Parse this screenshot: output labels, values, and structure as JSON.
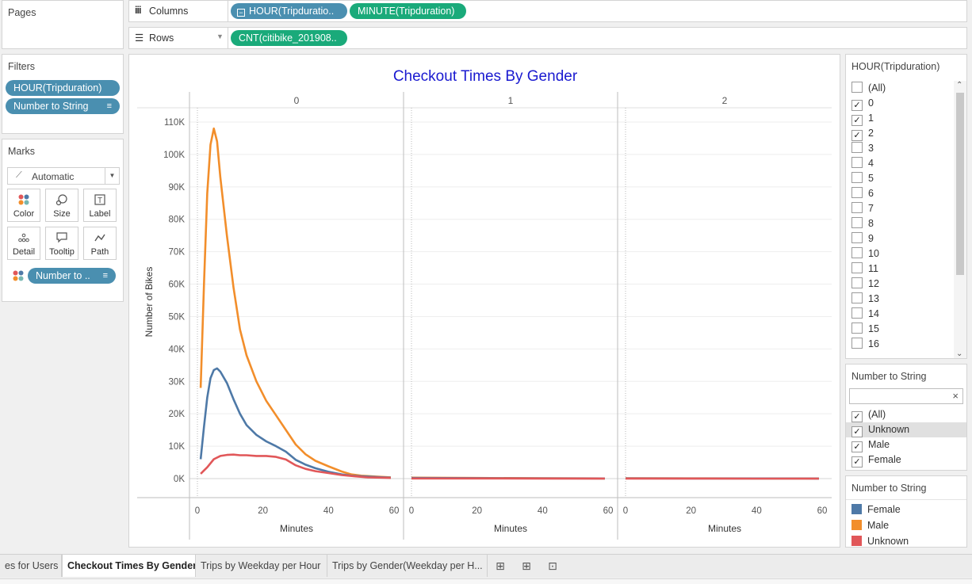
{
  "shelves": {
    "pages_label": "Pages",
    "columns_label": "Columns",
    "rows_label": "Rows",
    "columns_pills": [
      "HOUR(Tripduratio..",
      "MINUTE(Tripduration)"
    ],
    "rows_pills": [
      "CNT(citibike_201908.."
    ]
  },
  "filters": {
    "title": "Filters",
    "pills": [
      "HOUR(Tripduration)",
      "Number to String"
    ]
  },
  "marks": {
    "title": "Marks",
    "type_value": "Automatic",
    "buttons": [
      "Color",
      "Size",
      "Label",
      "Detail",
      "Tooltip",
      "Path"
    ],
    "color_pill": "Number to .."
  },
  "hour_filter": {
    "title": "HOUR(Tripduration)",
    "items": [
      {
        "label": "(All)",
        "checked": false
      },
      {
        "label": "0",
        "checked": true
      },
      {
        "label": "1",
        "checked": true
      },
      {
        "label": "2",
        "checked": true
      },
      {
        "label": "3",
        "checked": false
      },
      {
        "label": "4",
        "checked": false
      },
      {
        "label": "5",
        "checked": false
      },
      {
        "label": "6",
        "checked": false
      },
      {
        "label": "7",
        "checked": false
      },
      {
        "label": "8",
        "checked": false
      },
      {
        "label": "9",
        "checked": false
      },
      {
        "label": "10",
        "checked": false
      },
      {
        "label": "11",
        "checked": false
      },
      {
        "label": "12",
        "checked": false
      },
      {
        "label": "13",
        "checked": false
      },
      {
        "label": "14",
        "checked": false
      },
      {
        "label": "15",
        "checked": false
      },
      {
        "label": "16",
        "checked": false
      }
    ]
  },
  "gender_filter": {
    "title": "Number to String",
    "search_value": "",
    "items": [
      {
        "label": "(All)",
        "checked": true
      },
      {
        "label": "Unknown",
        "checked": true
      },
      {
        "label": "Male",
        "checked": true
      },
      {
        "label": "Female",
        "checked": true
      }
    ]
  },
  "legend": {
    "title": "Number to String",
    "items": [
      {
        "label": "Female",
        "color": "#4e79a7"
      },
      {
        "label": "Male",
        "color": "#f28e2b"
      },
      {
        "label": "Unknown",
        "color": "#e15759"
      }
    ]
  },
  "tabs": [
    {
      "label": "es for Users",
      "active": false
    },
    {
      "label": "Checkout Times By Gender",
      "active": true
    },
    {
      "label": "Trips by Weekday per Hour",
      "active": false
    },
    {
      "label": "Trips by Gender(Weekday per H...",
      "active": false
    }
  ],
  "chart_data": {
    "type": "line",
    "title": "Checkout Times By Gender",
    "ylabel": "Number of Bikes",
    "xlabel": "Minutes",
    "ylim": [
      0,
      110000
    ],
    "y_ticks": [
      "0K",
      "10K",
      "20K",
      "30K",
      "40K",
      "50K",
      "60K",
      "70K",
      "80K",
      "90K",
      "100K",
      "110K"
    ],
    "x_ticks": [
      "0",
      "20",
      "40",
      "60"
    ],
    "panels": [
      {
        "header": "0",
        "series": [
          {
            "name": "Male",
            "color": "#f28e2b",
            "x": [
              1,
              2,
              3,
              4,
              5,
              6,
              7,
              9,
              11,
              13,
              15,
              18,
              21,
              24,
              27,
              30,
              33,
              36,
              40,
              44,
              47,
              50,
              55,
              59
            ],
            "y": [
              28000,
              60000,
              88000,
              103000,
              108000,
              104000,
              93000,
              75000,
              59000,
              46000,
              38000,
              30000,
              24000,
              19500,
              15000,
              10500,
              7500,
              5500,
              3800,
              2200,
              1300,
              900,
              600,
              400
            ]
          },
          {
            "name": "Female",
            "color": "#4e79a7",
            "x": [
              1,
              2,
              3,
              4,
              5,
              6,
              7,
              9,
              11,
              13,
              15,
              18,
              21,
              24,
              27,
              30,
              33,
              36,
              40,
              44,
              47,
              50,
              55,
              59
            ],
            "y": [
              6000,
              16000,
              25000,
              31000,
              33500,
              34000,
              33000,
              29500,
              24500,
              20000,
              16500,
              13500,
              11500,
              10000,
              8300,
              5800,
              4300,
              3200,
              2100,
              1300,
              900,
              700,
              500,
              300
            ]
          },
          {
            "name": "Unknown",
            "color": "#e15759",
            "x": [
              1,
              3,
              5,
              7,
              9,
              11,
              13,
              15,
              18,
              21,
              24,
              27,
              30,
              33,
              36,
              40,
              44,
              48,
              52,
              56,
              59
            ],
            "y": [
              1500,
              3500,
              6000,
              7000,
              7300,
              7400,
              7200,
              7200,
              7000,
              7000,
              6700,
              5900,
              4100,
              3000,
              2300,
              1700,
              1100,
              700,
              400,
              300,
              200
            ]
          }
        ]
      },
      {
        "header": "1",
        "series": [
          {
            "name": "Male",
            "color": "#f28e2b",
            "x": [
              0,
              20,
              40,
              59
            ],
            "y": [
              300,
              200,
              100,
              50
            ]
          },
          {
            "name": "Female",
            "color": "#4e79a7",
            "x": [
              0,
              20,
              40,
              59
            ],
            "y": [
              200,
              150,
              80,
              40
            ]
          },
          {
            "name": "Unknown",
            "color": "#e15759",
            "x": [
              0,
              20,
              40,
              59
            ],
            "y": [
              50,
              40,
              30,
              20
            ]
          }
        ]
      },
      {
        "header": "2",
        "series": [
          {
            "name": "Male",
            "color": "#f28e2b",
            "x": [
              0,
              20,
              40,
              59
            ],
            "y": [
              100,
              80,
              60,
              40
            ]
          },
          {
            "name": "Female",
            "color": "#4e79a7",
            "x": [
              0,
              20,
              40,
              59
            ],
            "y": [
              80,
              60,
              40,
              30
            ]
          },
          {
            "name": "Unknown",
            "color": "#e15759",
            "x": [
              0,
              20,
              40,
              59
            ],
            "y": [
              20,
              20,
              10,
              10
            ]
          }
        ]
      }
    ]
  }
}
